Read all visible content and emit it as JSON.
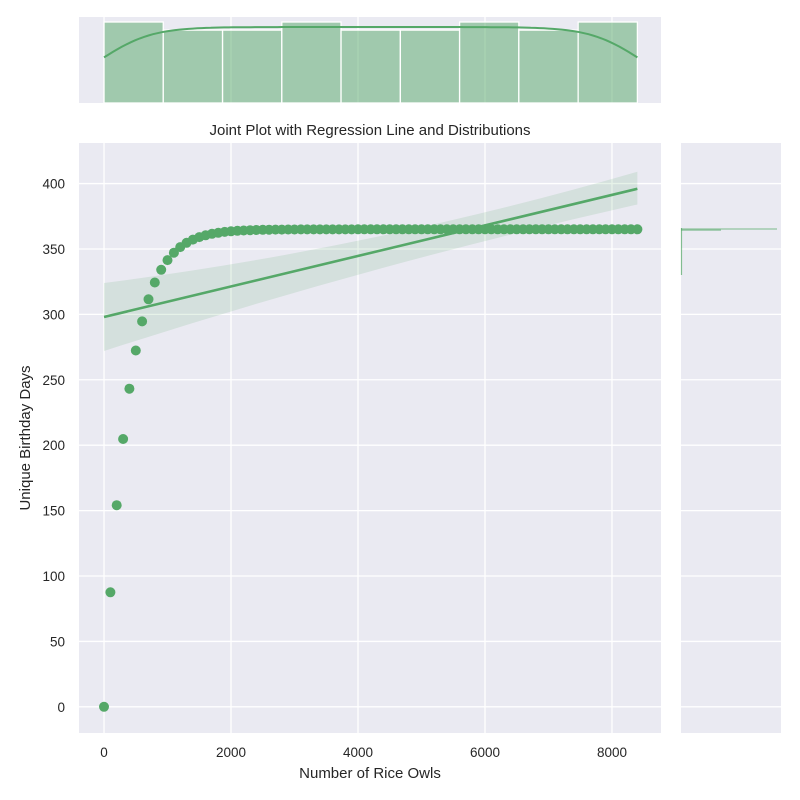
{
  "chart_data": {
    "type": "scatter",
    "title": "Joint Plot with Regression Line and Distributions",
    "xlabel": "Number of Rice Owls",
    "ylabel": "Unique Birthday Days",
    "xlim": [
      -394,
      8772
    ],
    "ylim": [
      -20,
      431
    ],
    "xticks": [
      0,
      2000,
      4000,
      6000,
      8000
    ],
    "yticks": [
      0,
      50,
      100,
      150,
      200,
      250,
      300,
      350,
      400
    ],
    "grid": true,
    "color": "#55a868",
    "scatter": {
      "x_start": 0,
      "x_step": 100,
      "x_end": 8400,
      "model": "365*(1-(364/365)^n)",
      "sample_points": [
        {
          "x": 0,
          "y": 0
        },
        {
          "x": 100,
          "y": 88
        },
        {
          "x": 200,
          "y": 154
        },
        {
          "x": 300,
          "y": 204
        },
        {
          "x": 400,
          "y": 243
        },
        {
          "x": 500,
          "y": 272
        },
        {
          "x": 600,
          "y": 294
        },
        {
          "x": 700,
          "y": 311
        },
        {
          "x": 800,
          "y": 324
        },
        {
          "x": 900,
          "y": 333
        },
        {
          "x": 1000,
          "y": 341
        },
        {
          "x": 1500,
          "y": 359
        },
        {
          "x": 2000,
          "y": 363
        },
        {
          "x": 3000,
          "y": 365
        },
        {
          "x": 8400,
          "y": 365
        }
      ]
    },
    "regression": {
      "x_start": 0,
      "y_start": 298,
      "x_end": 8400,
      "y_end": 396,
      "ci_start": [
        272,
        324
      ],
      "ci_end": [
        384,
        409
      ]
    },
    "marginal_x": {
      "type": "histogram+kde",
      "bins": 9,
      "bin_edges": [
        0,
        933,
        1867,
        2800,
        3733,
        4667,
        5600,
        6533,
        7467,
        8400
      ],
      "counts": [
        10,
        9,
        9,
        10,
        9,
        9,
        10,
        9,
        10
      ]
    },
    "marginal_y": {
      "type": "histogram+kde",
      "note": "nearly all mass concentrated near 365"
    }
  }
}
